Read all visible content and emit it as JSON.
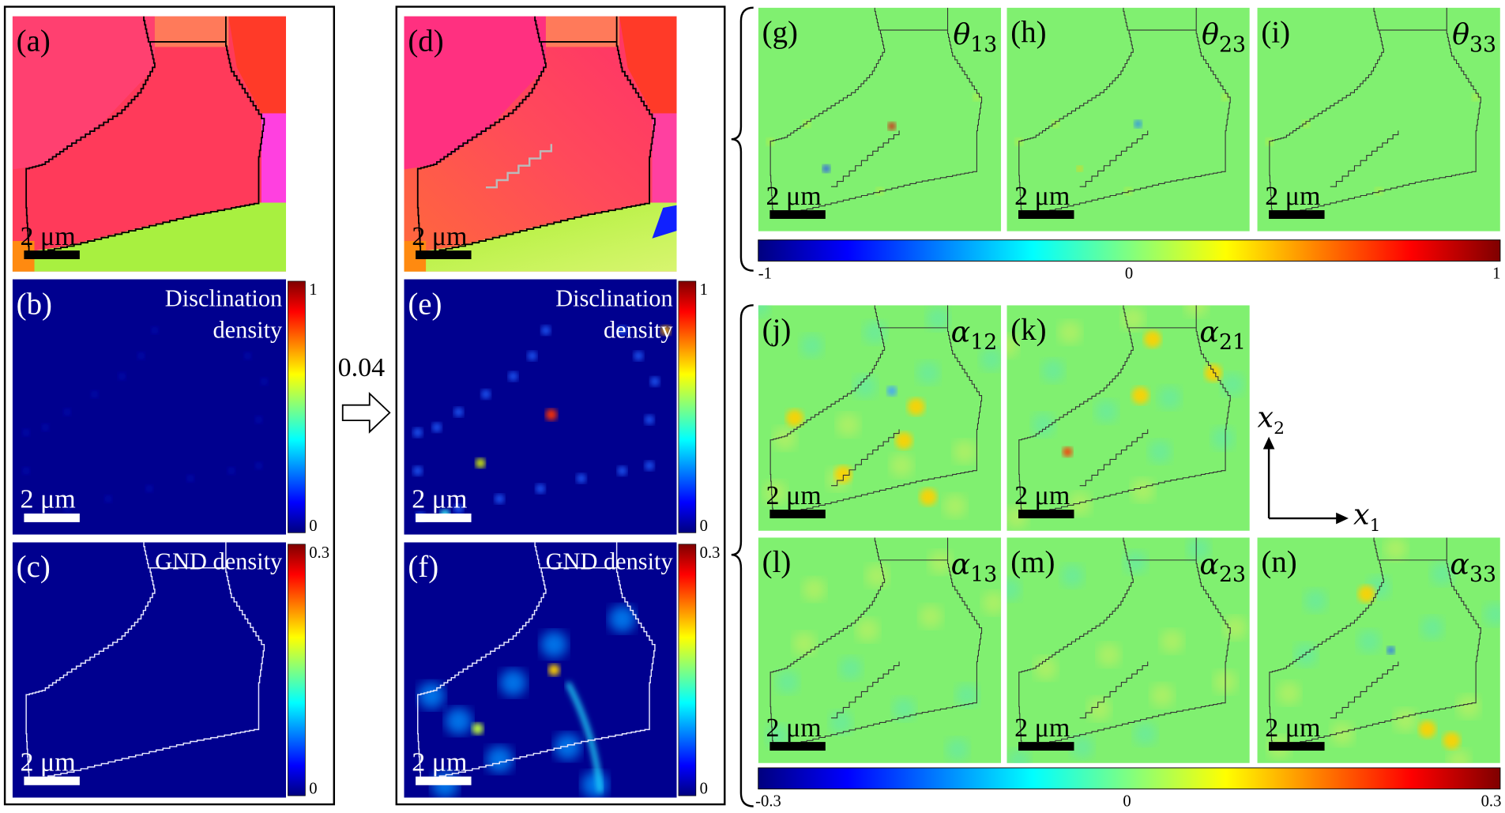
{
  "arrow_label": "0.04",
  "left_column": [
    {
      "label": "(a)",
      "title": "",
      "scalebar": "2 μm",
      "kind": "ipf"
    },
    {
      "label": "(b)",
      "title": [
        "Disclination",
        "density"
      ],
      "scalebar": "2 μm",
      "kind": "disc0",
      "colorbar": {
        "max": "1",
        "min": "0"
      }
    },
    {
      "label": "(c)",
      "title": [
        "GND density"
      ],
      "scalebar": "2 μm",
      "kind": "gnd0",
      "colorbar": {
        "max": "0.3",
        "min": "0"
      }
    }
  ],
  "middle_column": [
    {
      "label": "(d)",
      "title": "",
      "scalebar": "2 μm",
      "kind": "ipf2"
    },
    {
      "label": "(e)",
      "title": [
        "Disclination",
        "density"
      ],
      "scalebar": "2 μm",
      "kind": "disc1",
      "colorbar": {
        "max": "1",
        "min": "0"
      }
    },
    {
      "label": "(f)",
      "title": [
        "GND density"
      ],
      "scalebar": "2 μm",
      "kind": "gnd1",
      "colorbar": {
        "max": "0.3",
        "min": "0"
      }
    }
  ],
  "theta_panels": [
    {
      "label": "(g)",
      "symbol": "θ",
      "sub": "13",
      "scalebar": "2 μm"
    },
    {
      "label": "(h)",
      "symbol": "θ",
      "sub": "23",
      "scalebar": "2 μm"
    },
    {
      "label": "(i)",
      "symbol": "θ",
      "sub": "33",
      "scalebar": "2 μm"
    }
  ],
  "theta_colorbar": {
    "ticks": [
      "-1",
      "0",
      "1"
    ]
  },
  "alpha_panels": [
    {
      "label": "(j)",
      "symbol": "α",
      "sub": "12",
      "scalebar": "2 μm"
    },
    {
      "label": "(k)",
      "symbol": "α",
      "sub": "21",
      "scalebar": "2 μm"
    },
    {
      "label": "(l)",
      "symbol": "α",
      "sub": "13",
      "scalebar": "2 μm"
    },
    {
      "label": "(m)",
      "symbol": "α",
      "sub": "23",
      "scalebar": "2 μm"
    },
    {
      "label": "(n)",
      "symbol": "α",
      "sub": "33",
      "scalebar": "2 μm"
    }
  ],
  "alpha_colorbar": {
    "ticks": [
      "-0.3",
      "0",
      "0.3"
    ]
  },
  "axes": {
    "x1": "x",
    "x1_sub": "1",
    "x2": "x",
    "x2_sub": "2"
  },
  "colors": {
    "jet": [
      "#00007f",
      "#0000ff",
      "#00ffff",
      "#ffff00",
      "#ff0000",
      "#7f0000"
    ],
    "background_map": "#00008f",
    "neutral": "#80f080"
  }
}
